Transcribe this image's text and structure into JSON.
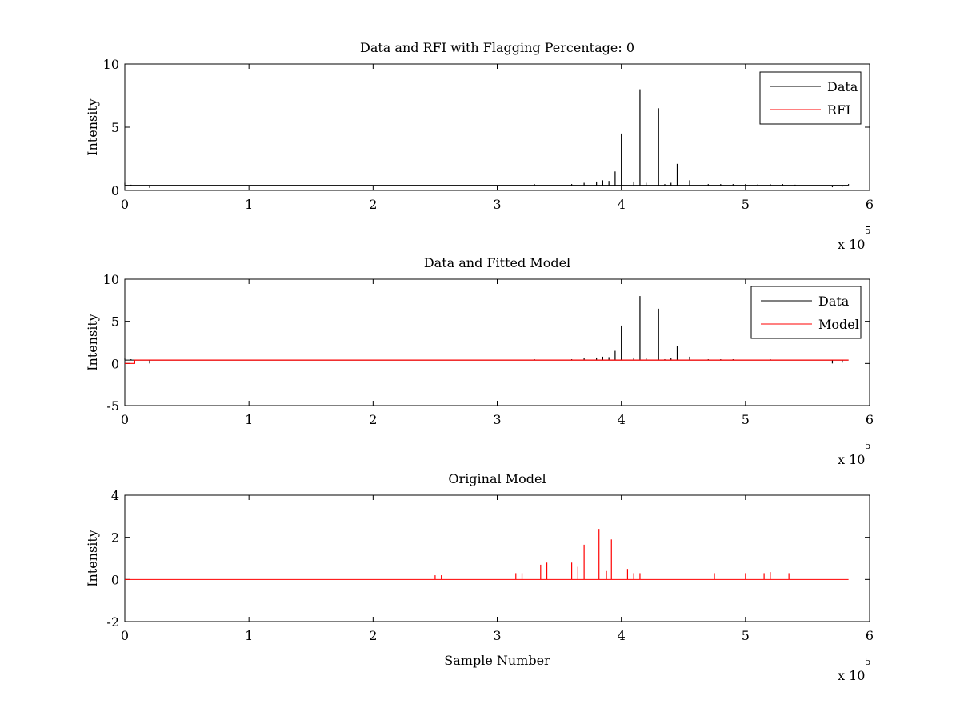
{
  "chart_data": [
    {
      "type": "line",
      "title": "Data and RFI with Flagging Percentage: 0",
      "xlabel": "",
      "ylabel": "Intensity",
      "xlim": [
        0,
        600000
      ],
      "ylim": [
        0,
        10
      ],
      "x_ticks": [
        "0",
        "1",
        "2",
        "3",
        "4",
        "5",
        "6"
      ],
      "y_ticks": [
        "0",
        "5",
        "10"
      ],
      "x_multiplier": "x 10",
      "x_multiplier_exp": "5",
      "legend": {
        "position": "top-right",
        "entries": [
          "Data",
          "RFI"
        ]
      },
      "series": [
        {
          "name": "Data",
          "color": "#000000",
          "baseline": 0.4,
          "x": [
            0,
            5000,
            10000,
            20000,
            28000,
            160000,
            330000,
            360000,
            370000,
            380000,
            385000,
            390000,
            395000,
            400000,
            410000,
            415000,
            420000,
            430000,
            435000,
            440000,
            445000,
            455000,
            470000,
            480000,
            490000,
            500000,
            510000,
            520000,
            530000,
            540000,
            570000,
            578000,
            583000
          ],
          "y": [
            0.6,
            0.45,
            0.4,
            0.2,
            0.4,
            0.4,
            0.5,
            0.5,
            0.6,
            0.7,
            0.8,
            0.75,
            1.5,
            4.5,
            0.7,
            8.0,
            0.6,
            6.5,
            0.5,
            0.6,
            2.1,
            0.8,
            0.5,
            0.5,
            0.5,
            0.5,
            0.5,
            0.5,
            0.5,
            0.45,
            0.25,
            0.3,
            0.5
          ]
        },
        {
          "name": "RFI",
          "color": "#ff0000",
          "x": [],
          "y": []
        }
      ]
    },
    {
      "type": "line",
      "title": "Data and Fitted Model",
      "xlabel": "",
      "ylabel": "Intensity",
      "xlim": [
        0,
        600000
      ],
      "ylim": [
        -5,
        10
      ],
      "x_ticks": [
        "0",
        "1",
        "2",
        "3",
        "4",
        "5",
        "6"
      ],
      "y_ticks": [
        "-5",
        "0",
        "5",
        "10"
      ],
      "x_multiplier": "x 10",
      "x_multiplier_exp": "5",
      "legend": {
        "position": "top-right",
        "entries": [
          "Data",
          "Model"
        ]
      },
      "series": [
        {
          "name": "Data",
          "color": "#000000",
          "baseline": 0.4,
          "x": [
            0,
            5000,
            10000,
            20000,
            28000,
            330000,
            360000,
            370000,
            380000,
            385000,
            390000,
            395000,
            400000,
            410000,
            415000,
            420000,
            430000,
            435000,
            440000,
            445000,
            455000,
            470000,
            480000,
            490000,
            520000,
            570000,
            578000,
            583000
          ],
          "y": [
            0.6,
            0.5,
            0.4,
            0.0,
            0.4,
            0.5,
            0.5,
            0.6,
            0.7,
            0.8,
            0.75,
            1.5,
            4.5,
            0.7,
            8.0,
            0.6,
            6.5,
            0.5,
            0.6,
            2.1,
            0.8,
            0.5,
            0.5,
            0.5,
            0.5,
            0.0,
            0.1,
            0.4
          ]
        },
        {
          "name": "Model",
          "color": "#ff0000",
          "x": [
            0,
            8000,
            8000,
            583000
          ],
          "y": [
            0.0,
            0.0,
            0.4,
            0.4
          ]
        }
      ]
    },
    {
      "type": "line",
      "title": "Original Model",
      "xlabel": "Sample Number",
      "ylabel": "Intensity",
      "xlim": [
        0,
        600000
      ],
      "ylim": [
        -2,
        4
      ],
      "x_ticks": [
        "0",
        "1",
        "2",
        "3",
        "4",
        "5",
        "6"
      ],
      "y_ticks": [
        "-2",
        "0",
        "2",
        "4"
      ],
      "x_multiplier": "x 10",
      "x_multiplier_exp": "5",
      "series": [
        {
          "name": "",
          "color": "#ff0000",
          "baseline": 0.0,
          "range": [
            0,
            583000
          ],
          "x": [
            250000,
            255000,
            315000,
            320000,
            335000,
            340000,
            360000,
            365000,
            370000,
            382000,
            388000,
            392000,
            405000,
            410000,
            415000,
            475000,
            500000,
            515000,
            520000,
            535000
          ],
          "y": [
            0.2,
            0.2,
            0.3,
            0.3,
            0.7,
            0.8,
            0.8,
            0.6,
            1.65,
            2.4,
            0.4,
            1.9,
            0.5,
            0.3,
            0.3,
            0.3,
            0.3,
            0.3,
            0.35,
            0.3
          ]
        }
      ]
    }
  ]
}
